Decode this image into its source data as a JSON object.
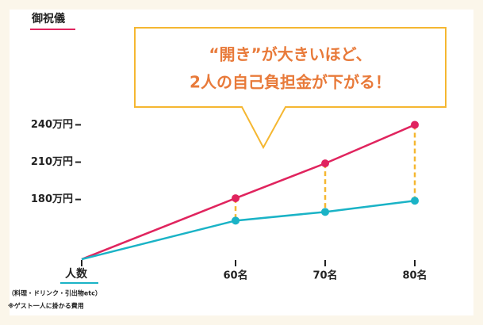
{
  "chart_data": {
    "type": "line",
    "title": "御祝儀",
    "x_label": "人数",
    "callout": [
      "“開き”が大きいほど、",
      "2人の自己負担金が下がる！"
    ],
    "notes": [
      "（料理・ドリンク・引出物etc）",
      "※ゲスト一人に掛かる費用"
    ],
    "categories": [
      null,
      "60名",
      "70名",
      "80名"
    ],
    "series": [
      {
        "color": "#e0245e",
        "values": [
          132,
          181,
          209,
          240
        ]
      },
      {
        "color": "#1ab3c6",
        "values": [
          132,
          163,
          170,
          179
        ]
      }
    ],
    "ylim": [
      132,
      318
    ],
    "yticks": [
      {
        "value": 180,
        "label": "180万円"
      },
      {
        "value": 210,
        "label": "210万円"
      },
      {
        "value": 240,
        "label": "240万円"
      }
    ],
    "gap_color": "#f5b731"
  }
}
